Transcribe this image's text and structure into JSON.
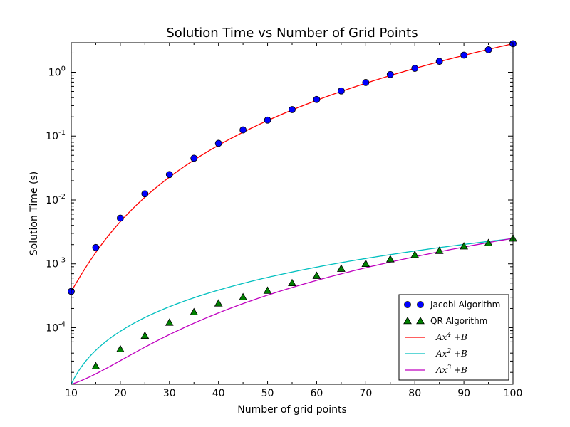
{
  "chart_data": {
    "type": "scatter",
    "title": "Solution Time vs Number of Grid Points",
    "xlabel": "Number of grid points",
    "ylabel": "Solution Time (s)",
    "xlim": [
      10,
      100
    ],
    "ylim": [
      1.3e-05,
      2.9
    ],
    "yscale": "log",
    "x_ticks": [
      10,
      20,
      30,
      40,
      50,
      60,
      70,
      80,
      90,
      100
    ],
    "y_ticks": [
      {
        "value": 0.0001,
        "base": "10",
        "exp": "-4"
      },
      {
        "value": 0.001,
        "base": "10",
        "exp": "-3"
      },
      {
        "value": 0.01,
        "base": "10",
        "exp": "-2"
      },
      {
        "value": 0.1,
        "base": "10",
        "exp": "-1"
      },
      {
        "value": 1,
        "base": "10",
        "exp": "0"
      }
    ],
    "grid": false,
    "legend_position": "lower-right",
    "series": [
      {
        "name": "Jacobi Algorithm",
        "kind": "points",
        "marker": "circle",
        "color": "#0000ff",
        "x": [
          10,
          15,
          20,
          25,
          30,
          35,
          40,
          45,
          50,
          55,
          60,
          65,
          70,
          75,
          80,
          85,
          90,
          95,
          100
        ],
        "y": [
          0.00037,
          0.0018,
          0.0052,
          0.0125,
          0.025,
          0.045,
          0.077,
          0.125,
          0.178,
          0.26,
          0.375,
          0.51,
          0.69,
          0.92,
          1.15,
          1.48,
          1.85,
          2.25,
          2.8
        ]
      },
      {
        "name": "QR Algorithm",
        "kind": "points",
        "marker": "triangle",
        "color": "#008000",
        "x": [
          15,
          20,
          25,
          30,
          35,
          40,
          45,
          50,
          55,
          60,
          65,
          70,
          75,
          80,
          85,
          90,
          95,
          100
        ],
        "y": [
          2.5e-05,
          4.6e-05,
          7.5e-05,
          0.00012,
          0.000175,
          0.00024,
          0.0003,
          0.00038,
          0.0005,
          0.00065,
          0.00084,
          0.001,
          0.00118,
          0.00138,
          0.0016,
          0.00188,
          0.00212,
          0.0025
        ]
      },
      {
        "name": "Ax^4 +B",
        "kind": "fit",
        "color": "#ff0000",
        "formula": {
          "A": 2.8e-08,
          "power": 4,
          "B": 9e-05
        }
      },
      {
        "name": "Ax^2 +B",
        "kind": "fit",
        "color": "#00bfbf",
        "formula": {
          "A": 2.5e-07,
          "power": 2,
          "B": -1.2e-05
        }
      },
      {
        "name": "Ax^3 +B",
        "kind": "fit",
        "color": "#bf00bf",
        "formula": {
          "A": 2.5e-09,
          "power": 3,
          "B": 1.05e-05
        }
      }
    ],
    "legend": [
      {
        "label": "Jacobi Algorithm",
        "base": "",
        "exp": "",
        "tail": ""
      },
      {
        "label": "QR Algorithm",
        "base": "",
        "exp": "",
        "tail": ""
      },
      {
        "label": "",
        "base": "Ax",
        "exp": "4",
        "tail": " +B"
      },
      {
        "label": "",
        "base": "Ax",
        "exp": "2",
        "tail": " +B"
      },
      {
        "label": "",
        "base": "Ax",
        "exp": "3",
        "tail": " +B"
      }
    ]
  }
}
